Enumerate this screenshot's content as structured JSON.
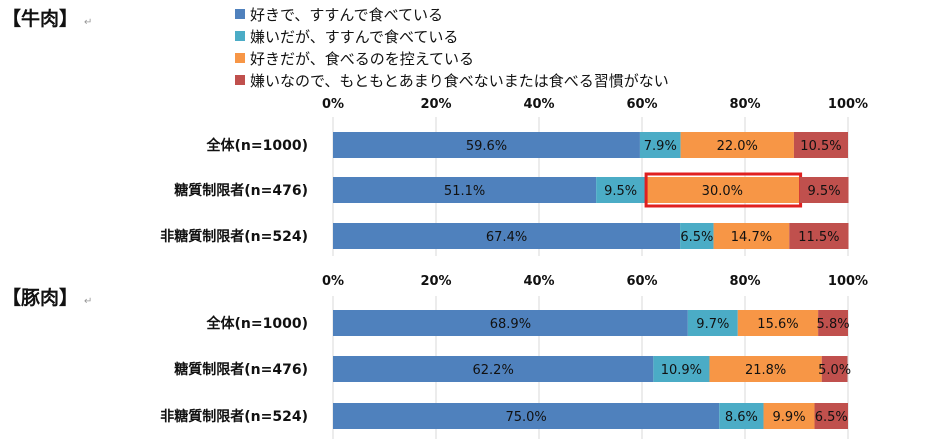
{
  "sections": [
    {
      "title": "【牛肉】",
      "mark": "↵"
    },
    {
      "title": "【豚肉】",
      "mark": "↵"
    }
  ],
  "legend": [
    {
      "label": "好きで、すすんで食べている",
      "color": "#4F81BD"
    },
    {
      "label": "嫌いだが、すすんで食べている",
      "color": "#4BACC6"
    },
    {
      "label": "好きだが、食べるのを控えている",
      "color": "#F79646"
    },
    {
      "label": "嫌いなので、もともとあまり食べないまたは食べる習慣がない",
      "color": "#C0504D"
    }
  ],
  "highlight_color": "#E02020",
  "chart_data": [
    {
      "type": "bar",
      "orientation": "horizontal",
      "stacked": true,
      "title": "【牛肉】",
      "categories": [
        "全体(n=1000)",
        "糖質制限者(n=476)",
        "非糖質制限者(n=524)"
      ],
      "xlim": [
        0,
        100
      ],
      "xticks": [
        "0%",
        "20%",
        "40%",
        "60%",
        "80%",
        "100%"
      ],
      "series": [
        {
          "name": "好きで、すすんで食べている",
          "values": [
            59.6,
            51.1,
            67.4
          ]
        },
        {
          "name": "嫌いだが、すすんで食べている",
          "values": [
            7.9,
            9.5,
            6.5
          ]
        },
        {
          "name": "好きだが、食べるのを控えている",
          "values": [
            22.0,
            30.0,
            14.7
          ]
        },
        {
          "name": "嫌いなので、もともとあまり食べないまたは食べる習慣がない",
          "values": [
            10.5,
            9.5,
            11.5
          ]
        }
      ],
      "highlight": {
        "category_index": 1,
        "series_index": 2
      }
    },
    {
      "type": "bar",
      "orientation": "horizontal",
      "stacked": true,
      "title": "【豚肉】",
      "categories": [
        "全体(n=1000)",
        "糖質制限者(n=476)",
        "非糖質制限者(n=524)"
      ],
      "xlim": [
        0,
        100
      ],
      "xticks": [
        "0%",
        "20%",
        "40%",
        "60%",
        "80%",
        "100%"
      ],
      "series": [
        {
          "name": "好きで、すすんで食べている",
          "values": [
            68.9,
            62.2,
            75.0
          ]
        },
        {
          "name": "嫌いだが、すすんで食べている",
          "values": [
            9.7,
            10.9,
            8.6
          ]
        },
        {
          "name": "好きだが、食べるのを控えている",
          "values": [
            15.6,
            21.8,
            9.9
          ]
        },
        {
          "name": "嫌いなので、もともとあまり食べないまたは食べる習慣がない",
          "values": [
            5.8,
            5.0,
            6.5
          ]
        }
      ]
    }
  ]
}
